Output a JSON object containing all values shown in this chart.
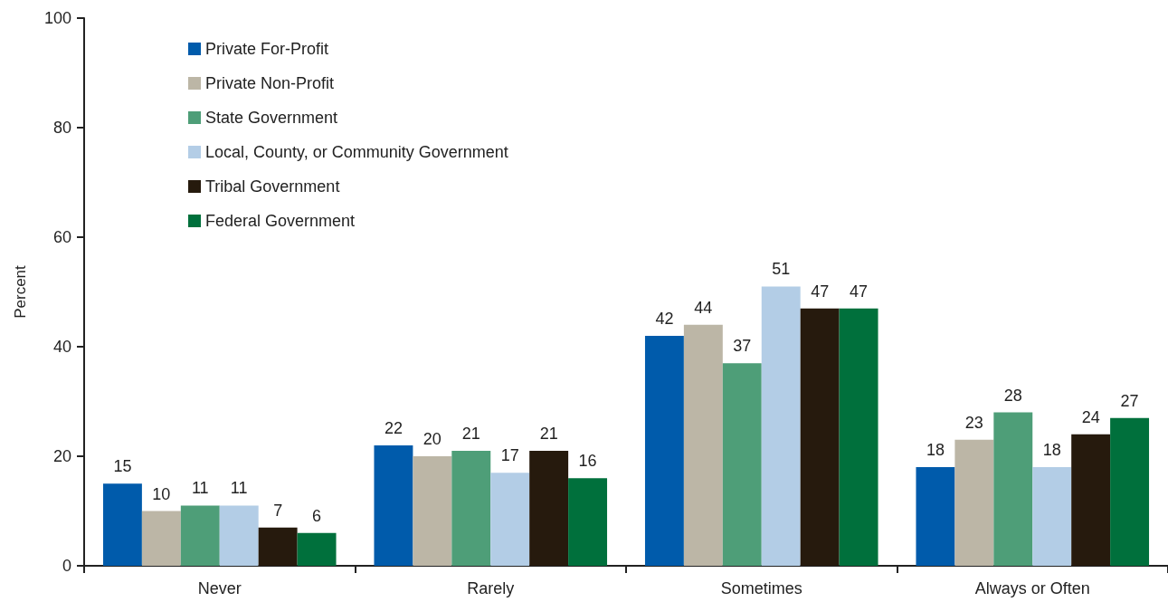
{
  "chart_data": {
    "type": "bar",
    "ylabel": "Percent",
    "categories": [
      "Never",
      "Rarely",
      "Sometimes",
      "Always or Often"
    ],
    "series": [
      {
        "name": "Private For-Profit",
        "color": "#005bab",
        "values": [
          15,
          22,
          42,
          18
        ]
      },
      {
        "name": "Private Non-Profit",
        "color": "#bcb6a6",
        "values": [
          10,
          20,
          44,
          23
        ]
      },
      {
        "name": "State Government",
        "color": "#4e9e78",
        "values": [
          11,
          21,
          37,
          28
        ]
      },
      {
        "name": "Local, County, or Community Government",
        "color": "#b3cde6",
        "values": [
          11,
          17,
          51,
          18
        ]
      },
      {
        "name": "Tribal Government",
        "color": "#261a0d",
        "values": [
          7,
          21,
          47,
          24
        ]
      },
      {
        "name": "Federal Government",
        "color": "#00703c",
        "values": [
          6,
          16,
          47,
          27
        ]
      }
    ],
    "ylim": [
      0,
      100
    ],
    "yticks": [
      0,
      20,
      40,
      60,
      80,
      100
    ],
    "grid": false,
    "legend": "top left",
    "data_labels": true
  }
}
